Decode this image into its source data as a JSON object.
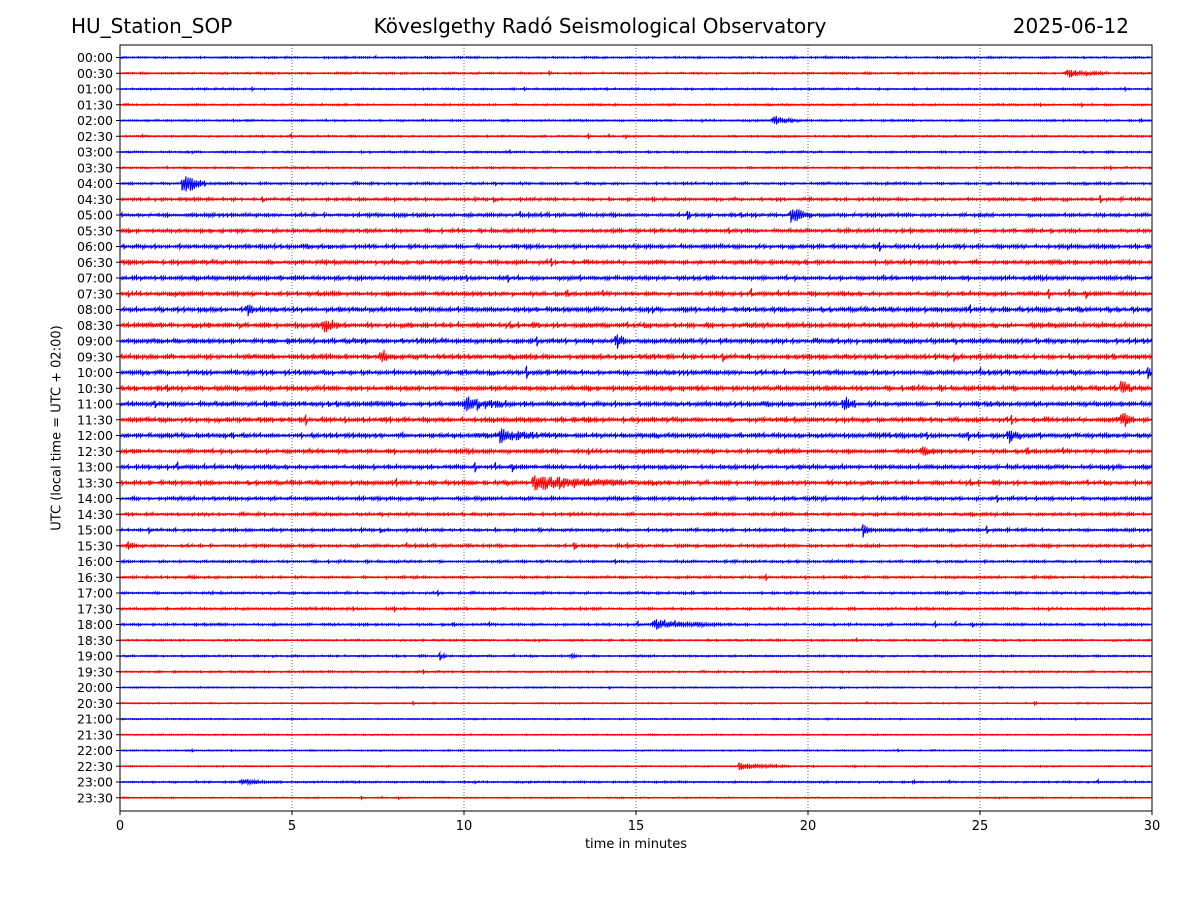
{
  "header": {
    "station": "HU_Station_SOP",
    "observatory": "Köveslgethy Radó Seismological Observatory",
    "date": "2025-06-12"
  },
  "chart_data": {
    "type": "line",
    "title": "Köveslgethy Radó Seismological Observatory",
    "xlabel": "time in minutes",
    "ylabel": "UTC (local time = UTC + 02:00)",
    "xlim": [
      0,
      30
    ],
    "x_ticks": [
      "0",
      "5",
      "10",
      "15",
      "20",
      "25",
      "30"
    ],
    "grid": "vertical dotted at each 5 minutes",
    "colors": {
      "even_rows": "#0000ff",
      "odd_rows": "#ff0000"
    },
    "row_labels": [
      "00:00",
      "00:30",
      "01:00",
      "01:30",
      "02:00",
      "02:30",
      "03:00",
      "03:30",
      "04:00",
      "04:30",
      "05:00",
      "05:30",
      "06:00",
      "06:30",
      "07:00",
      "07:30",
      "08:00",
      "08:30",
      "09:00",
      "09:30",
      "10:00",
      "10:30",
      "11:00",
      "11:30",
      "12:00",
      "12:30",
      "13:00",
      "13:30",
      "14:00",
      "14:30",
      "15:00",
      "15:30",
      "16:00",
      "16:30",
      "17:00",
      "17:30",
      "18:00",
      "18:30",
      "19:00",
      "19:30",
      "20:00",
      "20:30",
      "21:00",
      "21:30",
      "22:00",
      "22:30",
      "23:00",
      "23:30"
    ],
    "noise_level": [
      0.3,
      0.3,
      0.3,
      0.3,
      0.3,
      0.3,
      0.3,
      0.3,
      0.4,
      0.5,
      0.6,
      0.6,
      0.7,
      0.7,
      0.7,
      0.7,
      0.8,
      0.8,
      0.8,
      0.8,
      0.8,
      0.8,
      0.8,
      0.8,
      0.8,
      0.7,
      0.7,
      0.7,
      0.6,
      0.5,
      0.5,
      0.5,
      0.4,
      0.4,
      0.4,
      0.4,
      0.4,
      0.3,
      0.3,
      0.3,
      0.2,
      0.2,
      0.2,
      0.2,
      0.2,
      0.2,
      0.3,
      0.2
    ],
    "events": [
      {
        "row": 1,
        "minute": 27.5,
        "amp": 1.0,
        "dur": 1.2
      },
      {
        "row": 4,
        "minute": 19.0,
        "amp": 1.2,
        "dur": 0.8
      },
      {
        "row": 8,
        "minute": 1.8,
        "amp": 4.0,
        "dur": 0.7
      },
      {
        "row": 10,
        "minute": 19.5,
        "amp": 2.5,
        "dur": 0.6
      },
      {
        "row": 16,
        "minute": 3.7,
        "amp": 1.5,
        "dur": 0.3
      },
      {
        "row": 17,
        "minute": 5.9,
        "amp": 2.0,
        "dur": 0.5
      },
      {
        "row": 18,
        "minute": 14.4,
        "amp": 3.0,
        "dur": 0.3
      },
      {
        "row": 19,
        "minute": 7.6,
        "amp": 2.5,
        "dur": 0.3
      },
      {
        "row": 21,
        "minute": 29.1,
        "amp": 2.5,
        "dur": 0.4
      },
      {
        "row": 22,
        "minute": 10.0,
        "amp": 1.5,
        "dur": 1.5
      },
      {
        "row": 22,
        "minute": 21.0,
        "amp": 2.5,
        "dur": 0.4
      },
      {
        "row": 23,
        "minute": 29.1,
        "amp": 3.0,
        "dur": 0.4
      },
      {
        "row": 24,
        "minute": 11.0,
        "amp": 1.5,
        "dur": 1.5
      },
      {
        "row": 24,
        "minute": 25.8,
        "amp": 2.5,
        "dur": 0.4
      },
      {
        "row": 25,
        "minute": 23.3,
        "amp": 1.5,
        "dur": 0.4
      },
      {
        "row": 27,
        "minute": 12.0,
        "amp": 1.5,
        "dur": 3.5
      },
      {
        "row": 30,
        "minute": 21.6,
        "amp": 1.5,
        "dur": 0.3
      },
      {
        "row": 31,
        "minute": 0.2,
        "amp": 1.2,
        "dur": 0.3
      },
      {
        "row": 36,
        "minute": 15.5,
        "amp": 1.2,
        "dur": 2.0
      },
      {
        "row": 38,
        "minute": 9.3,
        "amp": 1.0,
        "dur": 0.2
      },
      {
        "row": 38,
        "minute": 13.1,
        "amp": 0.8,
        "dur": 0.2
      },
      {
        "row": 45,
        "minute": 18.0,
        "amp": 0.8,
        "dur": 1.5
      },
      {
        "row": 46,
        "minute": 3.5,
        "amp": 0.8,
        "dur": 1.0
      }
    ]
  }
}
